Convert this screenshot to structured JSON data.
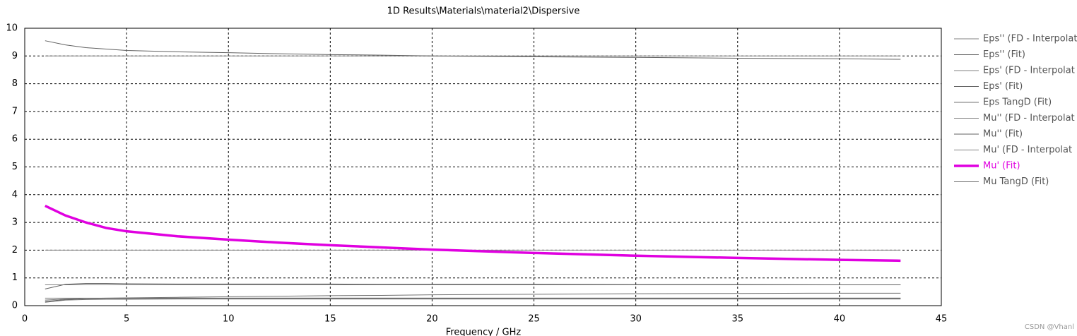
{
  "chart_data": {
    "type": "line",
    "title": "1D Results\\Materials\\material2\\Dispersive",
    "x_label": "Frequency / GHz",
    "watermark": "CSDN @Vhanl",
    "x": [
      1,
      2,
      3,
      4,
      5,
      7.5,
      10,
      12.5,
      15,
      17.5,
      20,
      25,
      30,
      35,
      40,
      43
    ],
    "series": [
      {
        "name": "Eps'' (FD - Interpolat",
        "color": "#808080",
        "width": 1,
        "values": [
          0.27,
          0.27,
          0.27,
          0.27,
          0.27,
          0.27,
          0.27,
          0.27,
          0.27,
          0.27,
          0.27,
          0.27,
          0.27,
          0.27,
          0.27,
          0.27
        ]
      },
      {
        "name": "Eps'' (Fit)",
        "color": "#606060",
        "width": 1,
        "values": [
          0.15,
          0.22,
          0.25,
          0.26,
          0.26,
          0.27,
          0.27,
          0.27,
          0.27,
          0.27,
          0.27,
          0.27,
          0.27,
          0.27,
          0.27,
          0.27
        ]
      },
      {
        "name": "Eps' (FD - Interpolat",
        "color": "#808080",
        "width": 1,
        "values": [
          9,
          9,
          9,
          9,
          9,
          9,
          9,
          9,
          9,
          9,
          9,
          9,
          9,
          9,
          9,
          9
        ]
      },
      {
        "name": "Eps' (Fit)",
        "color": "#606060",
        "width": 1,
        "values": [
          9.55,
          9.4,
          9.3,
          9.25,
          9.2,
          9.15,
          9.12,
          9.08,
          9.05,
          9.03,
          9.0,
          8.97,
          8.95,
          8.92,
          8.9,
          8.88
        ]
      },
      {
        "name": "Eps TangD (Fit)",
        "color": "#707070",
        "width": 1,
        "values": [
          0.2,
          0.24,
          0.26,
          0.27,
          0.28,
          0.3,
          0.32,
          0.34,
          0.36,
          0.37,
          0.39,
          0.41,
          0.43,
          0.44,
          0.45,
          0.45
        ]
      },
      {
        "name": "Mu'' (FD - Interpolat",
        "color": "#808080",
        "width": 1,
        "values": [
          0.75,
          0.75,
          0.75,
          0.75,
          0.75,
          0.75,
          0.75,
          0.75,
          0.75,
          0.75,
          0.75,
          0.75,
          0.75,
          0.75,
          0.75,
          0.75
        ]
      },
      {
        "name": "Mu'' (Fit)",
        "color": "#606060",
        "width": 1,
        "values": [
          0.6,
          0.77,
          0.8,
          0.8,
          0.79,
          0.78,
          0.78,
          0.78,
          0.78,
          0.77,
          0.77,
          0.77,
          0.76,
          0.76,
          0.75,
          0.75
        ]
      },
      {
        "name": "Mu' (FD - Interpolat",
        "color": "#808080",
        "width": 1,
        "values": [
          2,
          2,
          2,
          2,
          2,
          2,
          2,
          2,
          2,
          2,
          2,
          2,
          2,
          2,
          2,
          2
        ]
      },
      {
        "name": "Mu' (Fit)",
        "color": "#e000e0",
        "width": 3.5,
        "values": [
          3.6,
          3.25,
          3.0,
          2.8,
          2.68,
          2.5,
          2.38,
          2.27,
          2.18,
          2.1,
          2.02,
          1.9,
          1.8,
          1.72,
          1.65,
          1.62
        ]
      },
      {
        "name": "Mu TangD (Fit)",
        "color": "#707070",
        "width": 1,
        "values": [
          0.12,
          0.2,
          0.22,
          0.23,
          0.23,
          0.24,
          0.24,
          0.24,
          0.24,
          0.24,
          0.24,
          0.24,
          0.24,
          0.24,
          0.24,
          0.24
        ]
      }
    ],
    "xlim": [
      0,
      45
    ],
    "xticks": [
      0,
      5,
      10,
      15,
      20,
      25,
      30,
      35,
      40,
      45
    ],
    "ylim": [
      0,
      10
    ],
    "yticks": [
      0,
      1,
      2,
      3,
      4,
      5,
      6,
      7,
      8,
      9,
      10
    ],
    "grid": true,
    "legend": "right"
  }
}
